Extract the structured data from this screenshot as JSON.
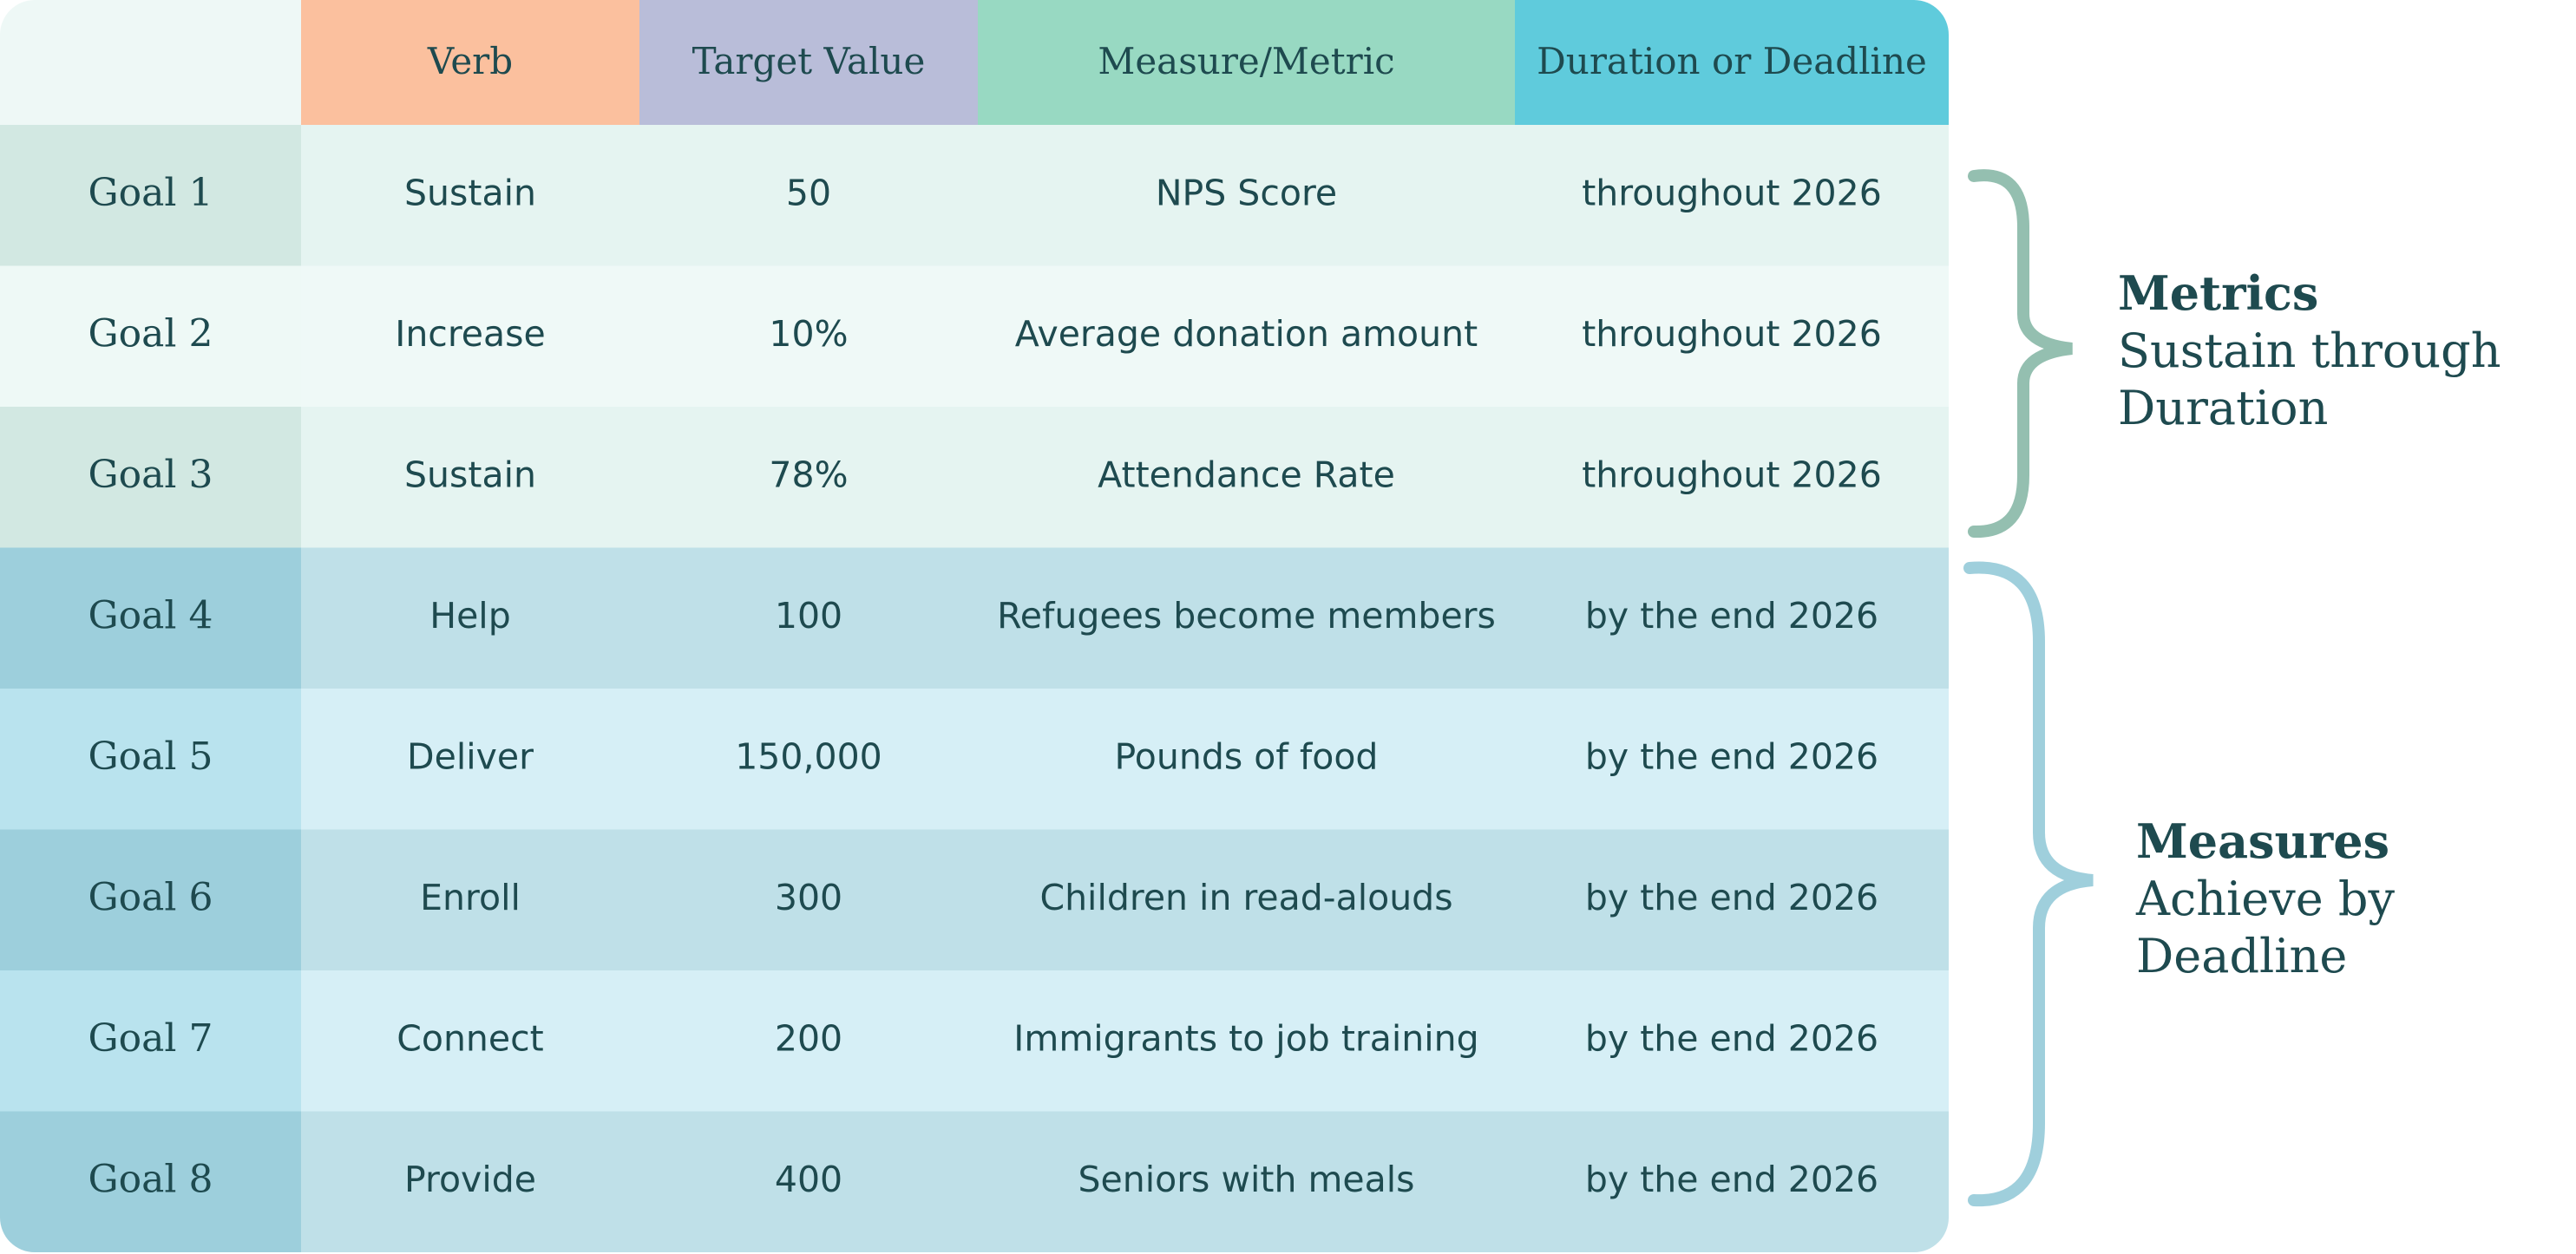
{
  "table": {
    "headers": [
      "Verb",
      "Target Value",
      "Measure/Metric",
      "Duration or Deadline"
    ],
    "rows": [
      [
        "Goal 1",
        "Sustain",
        "50",
        "NPS Score",
        "throughout 2026"
      ],
      [
        "Goal 2",
        "Increase",
        "10%",
        "Average donation amount",
        "throughout 2026"
      ],
      [
        "Goal 3",
        "Sustain",
        "78%",
        "Attendance Rate",
        "throughout 2026"
      ],
      [
        "Goal 4",
        "Help",
        "100",
        "Refugees become members",
        "by the end 2026"
      ],
      [
        "Goal 5",
        "Deliver",
        "150,000",
        "Pounds of food",
        "by the end 2026"
      ],
      [
        "Goal 6",
        "Enroll",
        "300",
        "Children in read-alouds",
        "by the end 2026"
      ],
      [
        "Goal 7",
        "Connect",
        "200",
        "Immigrants to job training",
        "by the end 2026"
      ],
      [
        "Goal 8",
        "Provide",
        "400",
        "Seniors with meals",
        "by the end 2026"
      ]
    ]
  },
  "annotations": [
    {
      "title": "Metrics",
      "lines": [
        "Sustain through",
        "Duration"
      ]
    },
    {
      "title": "Measures",
      "lines": [
        "Achieve by",
        "Deadline"
      ]
    }
  ]
}
